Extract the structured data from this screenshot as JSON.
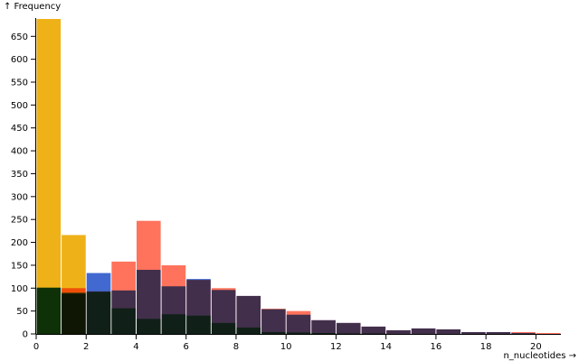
{
  "chart_data": {
    "type": "bar",
    "subtype": "overlapping-histogram",
    "title": "",
    "xlabel": "n_nucleotides →",
    "ylabel": "↑ Frequency",
    "xlim": [
      0,
      21
    ],
    "ylim": [
      0,
      690
    ],
    "bin_width": 1,
    "x_ticks": [
      0,
      2,
      4,
      6,
      8,
      10,
      12,
      14,
      16,
      18,
      20
    ],
    "y_ticks": [
      0,
      50,
      100,
      150,
      200,
      250,
      300,
      350,
      400,
      450,
      500,
      550,
      600,
      650
    ],
    "grid": false,
    "legend": "none",
    "blend": "multiply",
    "bins": [
      0,
      1,
      2,
      3,
      4,
      5,
      6,
      7,
      8,
      9,
      10,
      11,
      12,
      13,
      14,
      15,
      16,
      17,
      18,
      19,
      20
    ],
    "series": [
      {
        "color": "#efb118",
        "values": [
          688,
          216,
          0,
          0,
          0,
          0,
          0,
          0,
          0,
          0,
          0,
          0,
          0,
          0,
          0,
          0,
          0,
          0,
          0,
          0,
          0
        ]
      },
      {
        "color": "#ff725c",
        "values": [
          0,
          100,
          93,
          158,
          247,
          150,
          118,
          100,
          83,
          55,
          50,
          30,
          24,
          16,
          8,
          12,
          10,
          4,
          4,
          4,
          2
        ]
      },
      {
        "color": "#4269d0",
        "values": [
          101,
          88,
          133,
          95,
          140,
          104,
          120,
          96,
          83,
          54,
          42,
          30,
          24,
          16,
          8,
          12,
          10,
          4,
          4,
          2,
          0
        ]
      },
      {
        "color": "#3ca951",
        "values": [
          101,
          90,
          92,
          56,
          33,
          43,
          40,
          24,
          14,
          4,
          3,
          2,
          1,
          1,
          0,
          0,
          0,
          0,
          0,
          0,
          0
        ]
      }
    ]
  }
}
